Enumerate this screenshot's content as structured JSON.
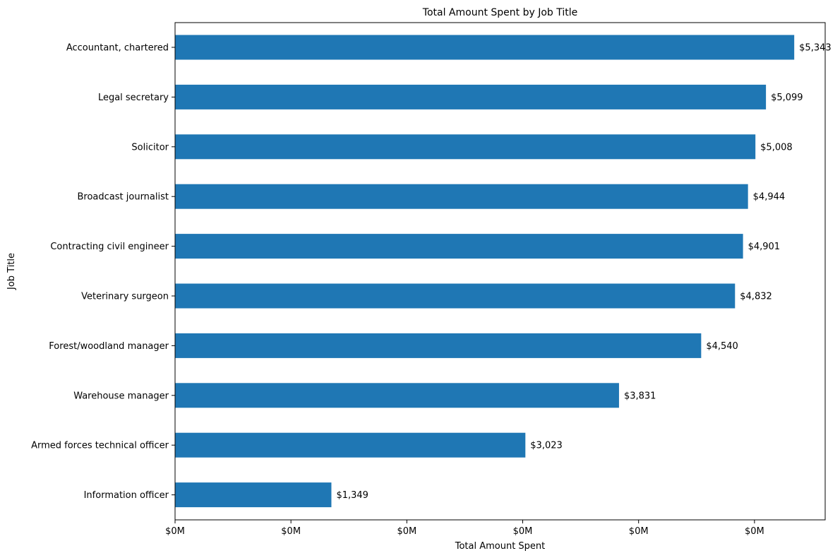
{
  "chart_data": {
    "type": "bar",
    "orientation": "horizontal",
    "title": "Total Amount Spent by Job Title",
    "xlabel": "Total Amount Spent",
    "ylabel": "Job Title",
    "categories": [
      "Accountant, chartered",
      "Legal secretary",
      "Solicitor",
      "Broadcast journalist",
      "Contracting civil engineer",
      "Veterinary surgeon",
      "Forest/woodland manager",
      "Warehouse manager",
      "Armed forces technical officer",
      "Information officer"
    ],
    "values": [
      5343,
      5099,
      5008,
      4944,
      4901,
      4832,
      4540,
      3831,
      3023,
      1349
    ],
    "value_labels": [
      "$5,343",
      "$5,099",
      "$5,008",
      "$4,944",
      "$4,901",
      "$4,832",
      "$4,540",
      "$3,831",
      "$3,023",
      "$1,349"
    ],
    "xlim": [
      0,
      5610
    ],
    "xticks": [
      0,
      1000,
      2000,
      3000,
      4000,
      5000
    ],
    "xtick_labels": [
      "$0M",
      "$0M",
      "$0M",
      "$0M",
      "$0M",
      "$0M"
    ],
    "bar_color": "#1f77b4",
    "grid": false,
    "legend": "none"
  }
}
